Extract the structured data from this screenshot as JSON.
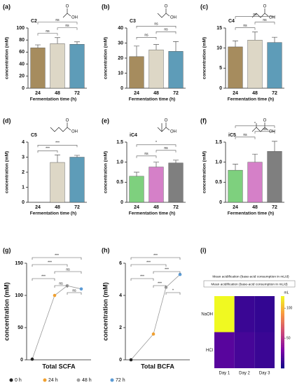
{
  "chart_data": [
    {
      "type": "bar",
      "panel": "(a)",
      "compound": "C2",
      "molecule_labels": [
        "O",
        "OH"
      ],
      "categories": [
        "24",
        "48",
        "72"
      ],
      "values": [
        67,
        74,
        73
      ],
      "errors": [
        5,
        10,
        4
      ],
      "colors": [
        "#a68c5e",
        "#ddd7c6",
        "#5e9cb8"
      ],
      "ylim": [
        0,
        100
      ],
      "yticks": [
        0,
        20,
        40,
        60,
        80,
        100
      ],
      "ylabel": "concentration (mM)",
      "xlabel": "Fermentation time (h)",
      "significance": [
        "ns",
        "ns",
        "ns"
      ]
    },
    {
      "type": "bar",
      "panel": "(b)",
      "compound": "C3",
      "molecule_labels": [
        "O",
        "OH"
      ],
      "categories": [
        "24",
        "48",
        "72"
      ],
      "values": [
        21,
        25.5,
        24.5
      ],
      "errors": [
        7,
        3.5,
        6.5
      ],
      "colors": [
        "#a68c5e",
        "#ddd7c6",
        "#5e9cb8"
      ],
      "ylim": [
        0,
        40
      ],
      "yticks": [
        0,
        10,
        20,
        30,
        40
      ],
      "ylabel": "concentration (mM)",
      "xlabel": "Fermentation time (h)",
      "significance": [
        "ns",
        "ns",
        "ns"
      ]
    },
    {
      "type": "bar",
      "panel": "(c)",
      "compound": "C4",
      "molecule_labels": [
        "O",
        "OH"
      ],
      "categories": [
        "24",
        "48",
        "72"
      ],
      "values": [
        10.3,
        12,
        11.4
      ],
      "errors": [
        1.5,
        2,
        1.3
      ],
      "colors": [
        "#a68c5e",
        "#ddd7c6",
        "#5e9cb8"
      ],
      "ylim": [
        0,
        15
      ],
      "yticks": [
        0,
        5,
        10,
        15
      ],
      "ylabel": "concentration (mM)",
      "xlabel": "Fermentation time (h)",
      "significance": [
        "ns",
        "ns",
        "ns"
      ]
    },
    {
      "type": "bar",
      "panel": "(d)",
      "compound": "C5",
      "molecule_labels": [
        "O",
        "OH"
      ],
      "categories": [
        "24",
        "48",
        "72"
      ],
      "values": [
        0,
        2.65,
        3.0
      ],
      "errors": [
        0,
        0.5,
        0.12
      ],
      "colors": [
        "#a68c5e",
        "#ddd7c6",
        "#5e9cb8"
      ],
      "ylim": [
        0,
        4
      ],
      "yticks": [
        0,
        1,
        2,
        3,
        4
      ],
      "ylabel": "concentration (mM)",
      "xlabel": "Fermentation time (h)",
      "significance": [
        "***",
        "***"
      ]
    },
    {
      "type": "bar",
      "panel": "(e)",
      "compound": "iC4",
      "molecule_labels": [
        "O",
        "OH"
      ],
      "categories": [
        "24",
        "48",
        "72"
      ],
      "values": [
        0.65,
        0.88,
        0.98
      ],
      "errors": [
        0.1,
        0.12,
        0.07
      ],
      "colors": [
        "#7ed07e",
        "#d580c8",
        "#7f7f7f"
      ],
      "ylim": [
        0,
        1.5
      ],
      "yticks": [
        0,
        0.5,
        {
          "value": 1,
          "label": "1.0"
        },
        1.5
      ],
      "ylabel": "concentration (mM)",
      "xlabel": "Fermentation time (h)",
      "significance": [
        "ns",
        "ns",
        "*"
      ]
    },
    {
      "type": "bar",
      "panel": "(f)",
      "compound": "iC5",
      "molecule_labels": [
        "O",
        "OH"
      ],
      "categories": [
        "24",
        "48",
        "72"
      ],
      "values": [
        0.8,
        1.0,
        1.27
      ],
      "errors": [
        0.15,
        0.2,
        0.25
      ],
      "colors": [
        "#7ed07e",
        "#d580c8",
        "#7f7f7f"
      ],
      "ylim": [
        0,
        1.5
      ],
      "yticks": [
        0,
        0.5,
        {
          "value": 1,
          "label": "1.0"
        },
        1.5
      ],
      "ylabel": "concentration (mM)",
      "xlabel": "Fermentation time (h)",
      "significance": [
        "ns",
        "ns",
        "*"
      ]
    },
    {
      "type": "dot",
      "panel": "(g)",
      "categories": [
        "Total SCFA"
      ],
      "series": [
        {
          "name": "0 h",
          "color": "#222222",
          "values": [
            1
          ]
        },
        {
          "name": "24 h",
          "color": "#f0a030",
          "values": [
            100
          ]
        },
        {
          "name": "48 h",
          "color": "#a0a0a0",
          "values": [
            115
          ]
        },
        {
          "name": "72 h",
          "color": "#5b9bd5",
          "values": [
            110
          ]
        }
      ],
      "ylim": [
        0,
        150
      ],
      "yticks": [
        0,
        50,
        100,
        150
      ],
      "ylabel": "concentration (mM)",
      "significance": [
        "***",
        "***",
        "ns",
        "***",
        "ns",
        "ns"
      ]
    },
    {
      "type": "dot",
      "panel": "(h)",
      "categories": [
        "Total BCFA"
      ],
      "series": [
        {
          "color": "#222222",
          "values": [
            0
          ]
        },
        {
          "color": "#f0a030",
          "values": [
            1.6
          ]
        },
        {
          "color": "#a0a0a0",
          "values": [
            4.5
          ]
        },
        {
          "color": "#5b9bd5",
          "values": [
            5.3
          ]
        }
      ],
      "ylim": [
        0,
        6
      ],
      "yticks": [
        0,
        2,
        4,
        6
      ],
      "ylabel": "concentration (mM)",
      "significance": [
        "***",
        "***",
        "***",
        "***",
        "***",
        "*"
      ]
    },
    {
      "type": "heatmap",
      "panel": "(i)",
      "title": "Mean acidification (base-acid consumption in mL/d)",
      "subtitle": "Mean acidification (base-acid consumption in mL/d)",
      "rows": [
        "NaOH",
        "HCl"
      ],
      "columns": [
        "Day 1",
        "Day 2",
        "Day 3"
      ],
      "values": [
        [
          120,
          12,
          10
        ],
        [
          20,
          15,
          12
        ]
      ],
      "zlim": [
        0,
        120
      ],
      "zticks": [
        50,
        100
      ],
      "colorbar_label": "mL"
    }
  ]
}
